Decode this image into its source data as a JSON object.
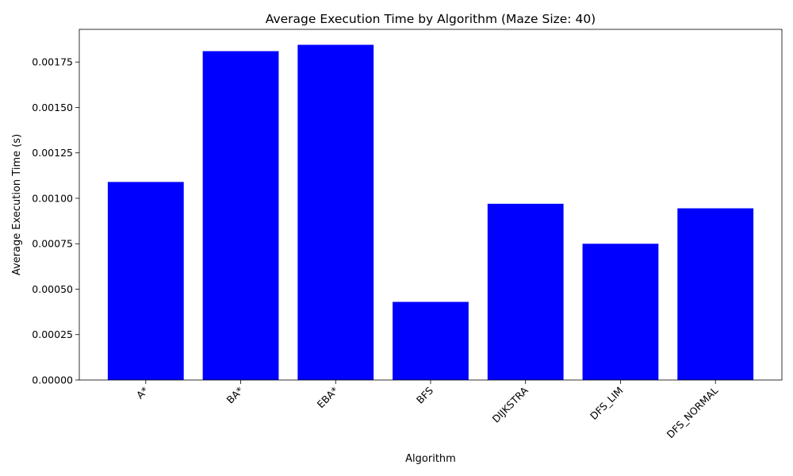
{
  "chart_data": {
    "type": "bar",
    "title": "Average Execution Time by Algorithm (Maze Size: 40)",
    "xlabel": "Algorithm",
    "ylabel": "Average Execution Time (s)",
    "categories": [
      "A*",
      "BA*",
      "EBA*",
      "BFS",
      "DIJKSTRA",
      "DFS_LIM",
      "DFS_NORMAL"
    ],
    "values": [
      0.00109,
      0.00181,
      0.001845,
      0.00043,
      0.00097,
      0.00075,
      0.000945
    ],
    "ylim": [
      0,
      0.00193
    ],
    "yticks": [
      "0.00000",
      "0.00025",
      "0.00050",
      "0.00075",
      "0.00100",
      "0.00125",
      "0.00150",
      "0.00175"
    ],
    "bar_color": "#0000ff",
    "grid": false,
    "xtick_rotation": 45
  }
}
